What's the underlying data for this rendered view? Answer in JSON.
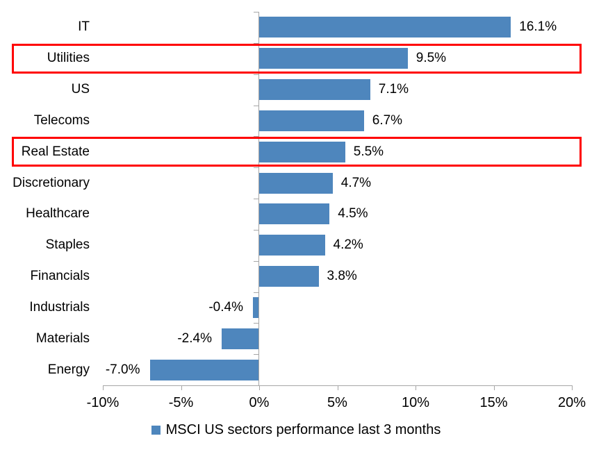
{
  "chart_data": {
    "type": "bar",
    "orientation": "horizontal",
    "title": "",
    "categories": [
      "IT",
      "Utilities",
      "US",
      "Telecoms",
      "Real Estate",
      "Discretionary",
      "Healthcare",
      "Staples",
      "Financials",
      "Industrials",
      "Materials",
      "Energy"
    ],
    "values": [
      16.1,
      9.5,
      7.1,
      6.7,
      5.5,
      4.7,
      4.5,
      4.2,
      3.8,
      -0.4,
      -2.4,
      -7.0
    ],
    "value_labels": [
      "16.1%",
      "9.5%",
      "7.1%",
      "6.7%",
      "5.5%",
      "4.7%",
      "4.5%",
      "4.2%",
      "3.8%",
      "-0.4%",
      "-2.4%",
      "-7.0%"
    ],
    "highlighted_categories": [
      "Utilities",
      "Real Estate"
    ],
    "x_tick_labels": [
      "-10%",
      "-5%",
      "0%",
      "5%",
      "10%",
      "15%",
      "20%"
    ],
    "x_tick_values": [
      -10,
      -5,
      0,
      5,
      10,
      15,
      20
    ],
    "xlim": [
      -10,
      20
    ],
    "grid": false,
    "bar_color": "#4e86bd",
    "highlight_box_color": "#ff0000",
    "axis_color": "#a6a6a6",
    "legend": {
      "position": "bottom",
      "label": "MSCI US sectors performance last 3 months",
      "marker_color": "#4e86bd"
    }
  }
}
